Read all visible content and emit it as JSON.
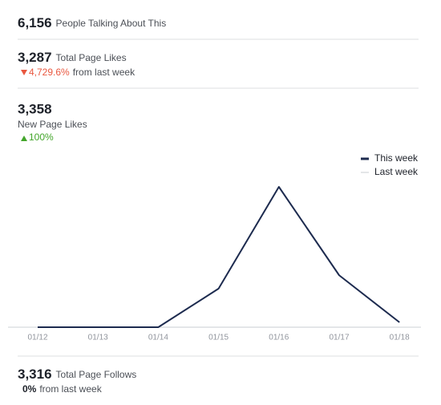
{
  "stats": [
    {
      "value": "6,156",
      "label": "People Talking About This"
    },
    {
      "value": "3,287",
      "label": "Total Page Likes",
      "change": "4,729.6%",
      "change_note": "from last week"
    },
    {
      "value": "3,358",
      "label": "New Page Likes",
      "change": "100%"
    },
    {
      "value": "3,316",
      "label": "Total Page Follows",
      "change": "0%",
      "change_note": "from last week"
    }
  ],
  "chart_data": {
    "type": "line",
    "categories": [
      "01/12",
      "01/13",
      "01/14",
      "01/15",
      "01/16",
      "01/17",
      "01/18"
    ],
    "series": [
      {
        "name": "This week",
        "color": "#1d2b4f",
        "values": [
          0,
          0,
          0,
          550,
          2000,
          740,
          70
        ]
      },
      {
        "name": "Last week",
        "color": "#c8ccd2",
        "values": [
          0,
          0,
          0,
          0,
          0,
          0,
          0
        ]
      }
    ]
  }
}
